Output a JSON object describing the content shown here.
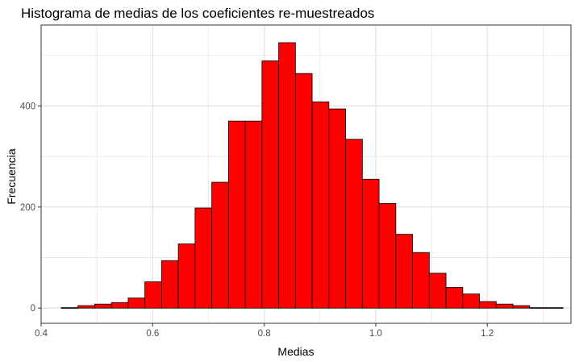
{
  "chart_data": {
    "type": "bar",
    "title": "Histograma de medias de los coeficientes re-muestreados",
    "xlabel": "Medias",
    "ylabel": "Frecuencia",
    "xlim": [
      0.4,
      1.35
    ],
    "ylim": [
      -30,
      560
    ],
    "x_ticks": [
      {
        "value": 0.4,
        "label": "0.4"
      },
      {
        "value": 0.6,
        "label": "0.6"
      },
      {
        "value": 0.8,
        "label": "0.8"
      },
      {
        "value": 1.0,
        "label": "1.0"
      },
      {
        "value": 1.2,
        "label": "1.2"
      }
    ],
    "y_ticks": [
      {
        "value": 0,
        "label": "0"
      },
      {
        "value": 200,
        "label": "200"
      },
      {
        "value": 400,
        "label": "400"
      }
    ],
    "bin_width": 0.03,
    "bin_centers": [
      0.451,
      0.481,
      0.511,
      0.541,
      0.571,
      0.601,
      0.631,
      0.661,
      0.691,
      0.721,
      0.751,
      0.781,
      0.811,
      0.841,
      0.871,
      0.901,
      0.931,
      0.961,
      0.991,
      1.021,
      1.051,
      1.081,
      1.111,
      1.141,
      1.171,
      1.201,
      1.231,
      1.261,
      1.291,
      1.321
    ],
    "values": [
      1,
      5,
      8,
      11,
      20,
      52,
      94,
      127,
      198,
      249,
      370,
      370,
      489,
      525,
      464,
      408,
      394,
      334,
      255,
      207,
      146,
      110,
      69,
      41,
      28,
      13,
      8,
      5,
      1,
      1
    ],
    "fill_color": "#ff0000",
    "bar_stroke": "#000000",
    "grid": true,
    "panel_border": "#333333",
    "grid_color": "#dedede"
  }
}
